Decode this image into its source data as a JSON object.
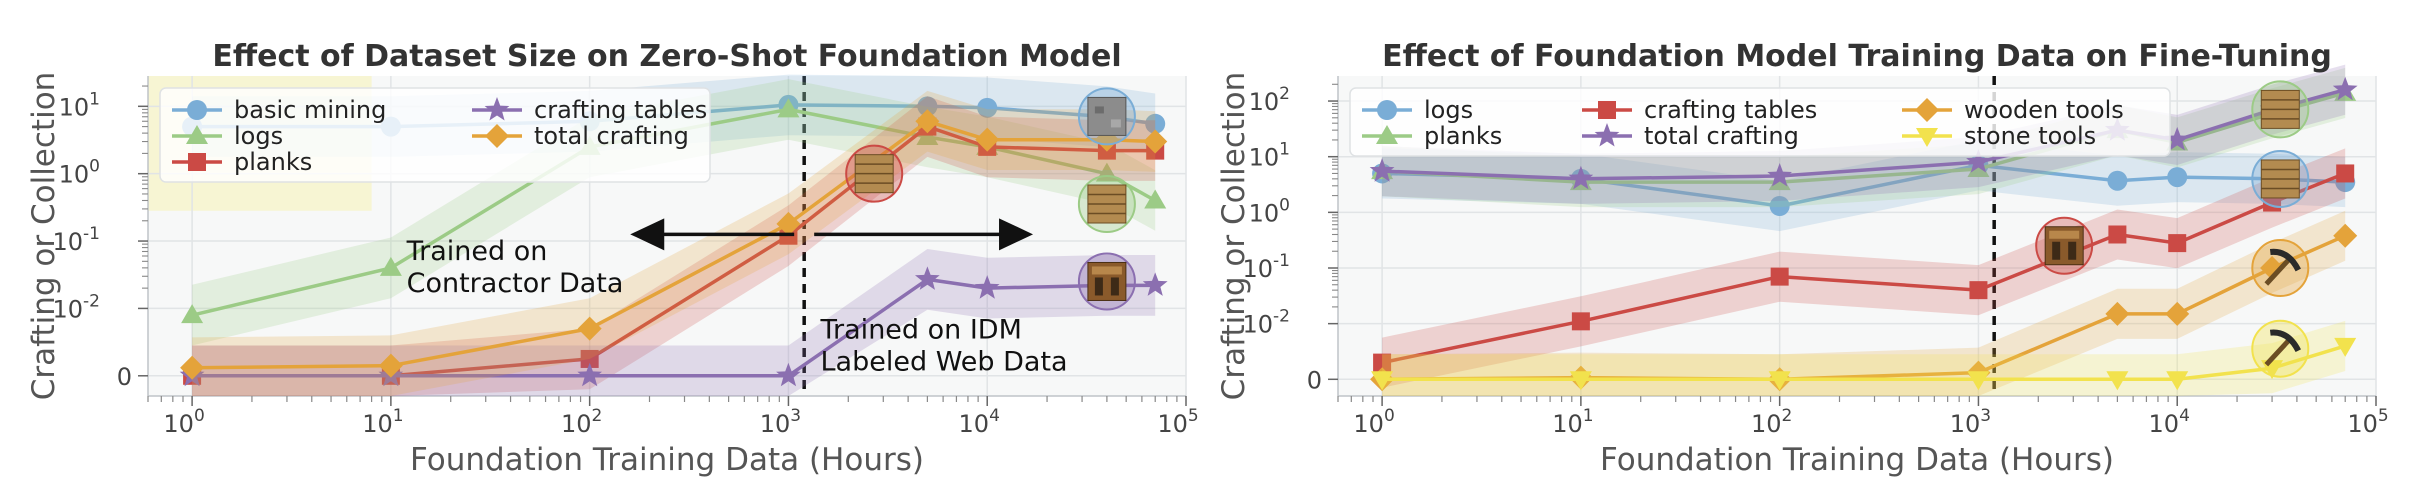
{
  "chart_data": [
    {
      "type": "line",
      "title": "Effect of Dataset Size on Zero-Shot Foundation Model",
      "xlabel": "Foundation Training Data (Hours)",
      "ylabel": "Crafting or Collection",
      "xscale": "log",
      "yscale": "symlog",
      "xlim": [
        0.6,
        100000
      ],
      "ylim": [
        -0.003,
        20
      ],
      "x_tick_labels": [
        "10^0",
        "10^1",
        "10^2",
        "10^3",
        "10^4",
        "10^5"
      ],
      "y_tick_labels": [
        "0",
        "10^-2",
        "10^-1",
        "10^0",
        "10^1"
      ],
      "grid": true,
      "legend_location": "top-left",
      "annotations": [
        "Trained on Contractor Data",
        "Trained on IDM Labeled Web Data"
      ],
      "vline_x": 1200,
      "series": [
        {
          "name": "basic mining",
          "color": "#7aadd6",
          "marker": "circle",
          "x": [
            1,
            10,
            100,
            1000,
            5000,
            10000,
            40000,
            70000
          ],
          "values": [
            5,
            5,
            6,
            10.5,
            10,
            9.5,
            7,
            5.5
          ]
        },
        {
          "name": "logs",
          "color": "#9ccb86",
          "marker": "triangle",
          "x": [
            1,
            10,
            100,
            1000,
            5000,
            10000,
            40000,
            70000
          ],
          "values": [
            0.009,
            0.04,
            2.5,
            9,
            3.5,
            2.5,
            1,
            0.4
          ]
        },
        {
          "name": "planks",
          "color": "#cb4a45",
          "marker": "square",
          "x": [
            1,
            10,
            100,
            1000,
            5000,
            10000,
            40000,
            70000
          ],
          "values": [
            0,
            0,
            0.0025,
            0.12,
            5,
            2.5,
            2.2,
            2.2
          ]
        },
        {
          "name": "crafting tables",
          "color": "#8b6fb0",
          "marker": "star",
          "x": [
            1,
            10,
            100,
            1000,
            5000,
            10000,
            40000,
            70000
          ],
          "values": [
            0,
            0,
            0,
            0,
            0.027,
            0.02,
            0.022,
            0.022
          ]
        },
        {
          "name": "total crafting",
          "color": "#e4a33a",
          "marker": "diamond",
          "x": [
            1,
            10,
            100,
            1000,
            5000,
            10000,
            40000,
            70000
          ],
          "values": [
            0.0012,
            0.0015,
            0.007,
            0.18,
            6,
            3.2,
            3.2,
            3
          ]
        }
      ]
    },
    {
      "type": "line",
      "title": "Effect of Foundation Model Training Data on Fine-Tuning",
      "xlabel": "Foundation Training Data (Hours)",
      "ylabel": "Crafting or Collection",
      "xscale": "log",
      "yscale": "symlog",
      "xlim": [
        0.6,
        100000
      ],
      "ylim": [
        -0.003,
        300
      ],
      "x_tick_labels": [
        "10^0",
        "10^1",
        "10^2",
        "10^3",
        "10^4",
        "10^5"
      ],
      "y_tick_labels": [
        "0",
        "10^-2",
        "10^-1",
        "10^0",
        "10^1",
        "10^2"
      ],
      "grid": true,
      "legend_location": "top-left",
      "vline_x": 1200,
      "series": [
        {
          "name": "logs",
          "color": "#7aadd6",
          "marker": "circle",
          "x": [
            1,
            10,
            100,
            1000,
            5000,
            10000,
            30000,
            70000
          ],
          "values": [
            5,
            4,
            1.3,
            7,
            3.7,
            4.3,
            4,
            3.5
          ]
        },
        {
          "name": "planks",
          "color": "#9ccb86",
          "marker": "triangle",
          "x": [
            1,
            10,
            100,
            1000,
            5000,
            10000,
            30000,
            70000
          ],
          "values": [
            5.5,
            3.5,
            3.5,
            6,
            30,
            18,
            60,
            140
          ]
        },
        {
          "name": "crafting tables",
          "color": "#cb4a45",
          "marker": "square",
          "x": [
            1,
            10,
            100,
            1000,
            5000,
            10000,
            30000,
            70000
          ],
          "values": [
            0.003,
            0.011,
            0.07,
            0.04,
            0.4,
            0.28,
            1.5,
            5
          ]
        },
        {
          "name": "total crafting",
          "color": "#8b6fb0",
          "marker": "star",
          "x": [
            1,
            10,
            100,
            1000,
            5000,
            10000,
            30000,
            70000
          ],
          "values": [
            5.5,
            4,
            4.5,
            8,
            30,
            20,
            70,
            160
          ]
        },
        {
          "name": "wooden tools",
          "color": "#e4a33a",
          "marker": "diamond",
          "x": [
            1,
            10,
            100,
            1000,
            5000,
            10000,
            30000,
            70000
          ],
          "values": [
            0,
            0.0003,
            0,
            0.0012,
            0.015,
            0.015,
            0.1,
            0.38
          ]
        },
        {
          "name": "stone tools",
          "color": "#f2e24d",
          "marker": "triangle-down",
          "x": [
            1,
            10,
            100,
            1000,
            5000,
            10000,
            30000,
            70000
          ],
          "values": [
            0,
            0,
            0,
            0,
            0,
            0,
            0.002,
            0.006
          ]
        }
      ]
    }
  ],
  "tick_text": {
    "x": [
      "10",
      "0",
      "10",
      "1",
      "10",
      "2",
      "10",
      "3",
      "10",
      "4",
      "10",
      "5"
    ],
    "y1": [
      "0",
      "10",
      "-2",
      "10",
      "-1",
      "10",
      "0",
      "10",
      "1"
    ],
    "y2": [
      "0",
      "10",
      "-2",
      "10",
      "-1",
      "10",
      "0",
      "10",
      "1",
      "10",
      "2"
    ]
  }
}
